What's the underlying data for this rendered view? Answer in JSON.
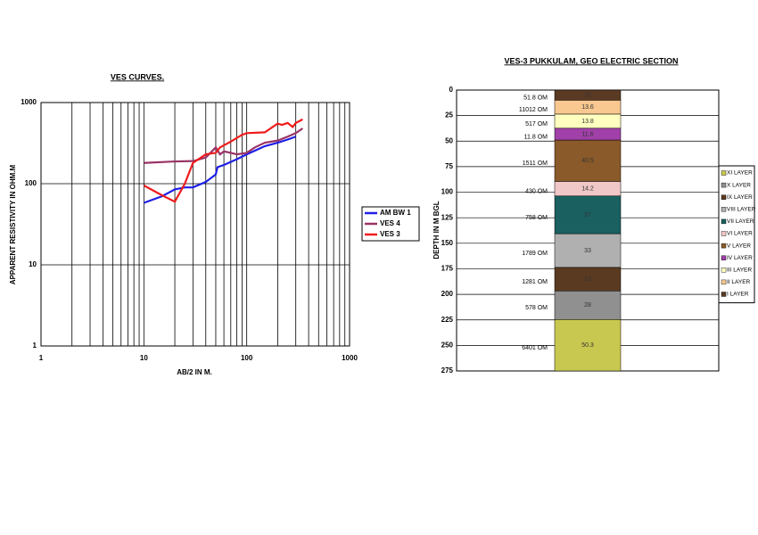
{
  "chart_data": [
    {
      "type": "line",
      "title": "VES CURVES.",
      "x_label": "AB/2 IN M.",
      "y_label": "APPARENT RESISTIVITY IN OHM.M",
      "log_x": true,
      "log_y": true,
      "grid": true,
      "xlim": [
        1,
        1000
      ],
      "xticks": [
        1,
        10,
        100,
        1000
      ],
      "ylim": [
        1,
        1000
      ],
      "yticks": [
        1,
        10,
        100,
        1000
      ],
      "series": [
        {
          "name": "AM BW 1",
          "color": "#1f1fe6",
          "x": [
            10,
            15,
            20,
            25,
            30,
            40,
            50,
            52,
            60,
            80,
            100,
            150,
            200,
            250,
            300
          ],
          "values": [
            58,
            70,
            85,
            90,
            90,
            105,
            130,
            160,
            170,
            200,
            230,
            290,
            320,
            350,
            380
          ]
        },
        {
          "name": "VES 4",
          "color": "#993366",
          "x": [
            10,
            20,
            30,
            40,
            50,
            55,
            60,
            70,
            80,
            100,
            120,
            150,
            200,
            250,
            300,
            350
          ],
          "values": [
            180,
            188,
            190,
            210,
            280,
            230,
            250,
            240,
            230,
            240,
            280,
            320,
            340,
            380,
            420,
            480
          ]
        },
        {
          "name": "VES 3",
          "color": "#ee1c1c",
          "x": [
            10,
            15,
            20,
            25,
            30,
            40,
            50,
            55,
            70,
            90,
            100,
            150,
            200,
            220,
            250,
            280,
            300,
            350
          ],
          "values": [
            95,
            72,
            60,
            100,
            180,
            230,
            240,
            280,
            330,
            400,
            420,
            430,
            550,
            530,
            560,
            500,
            560,
            620
          ]
        }
      ]
    },
    {
      "type": "section",
      "title": "VES-3 PUKKULAM, GEO ELECTRIC SECTION",
      "y_label": "DEPTH IN M BGL",
      "ylim": [
        0,
        275
      ],
      "yticks": [
        0,
        25,
        50,
        75,
        100,
        125,
        150,
        175,
        200,
        225,
        250,
        275
      ],
      "y_inverted": true,
      "grid": true,
      "series": [
        {
          "name": "I LAYER",
          "color": "#5a3a22",
          "values": [
            10
          ],
          "resistivity": "51.8 OM"
        },
        {
          "name": "II LAYER",
          "color": "#f8c890",
          "values": [
            13.6
          ],
          "resistivity": "11012 OM"
        },
        {
          "name": "III LAYER",
          "color": "#ffffc0",
          "values": [
            13.8
          ],
          "resistivity": "517 OM"
        },
        {
          "name": "IV LAYER",
          "color": "#a040a8",
          "values": [
            11.6
          ],
          "resistivity": "11.8 OM"
        },
        {
          "name": "V LAYER",
          "color": "#8a5a2a",
          "values": [
            40.5
          ],
          "resistivity": "1511 OM"
        },
        {
          "name": "VI LAYER",
          "color": "#f0c8c8",
          "values": [
            14.2
          ],
          "resistivity": "430 OM"
        },
        {
          "name": "VII LAYER",
          "color": "#1a6060",
          "values": [
            37
          ],
          "resistivity": "758 OM"
        },
        {
          "name": "VIII LAYER",
          "color": "#b0b0b0",
          "values": [
            33
          ],
          "resistivity": "1789 OM"
        },
        {
          "name": "IX LAYER",
          "color": "#5a3a20",
          "values": [
            23
          ],
          "resistivity": "1281 OM"
        },
        {
          "name": "X LAYER",
          "color": "#909090",
          "values": [
            28
          ],
          "resistivity": "578 OM"
        },
        {
          "name": "XI LAYER",
          "color": "#c8c850",
          "values": [
            50.3
          ],
          "resistivity": "6401 OM"
        }
      ]
    }
  ]
}
